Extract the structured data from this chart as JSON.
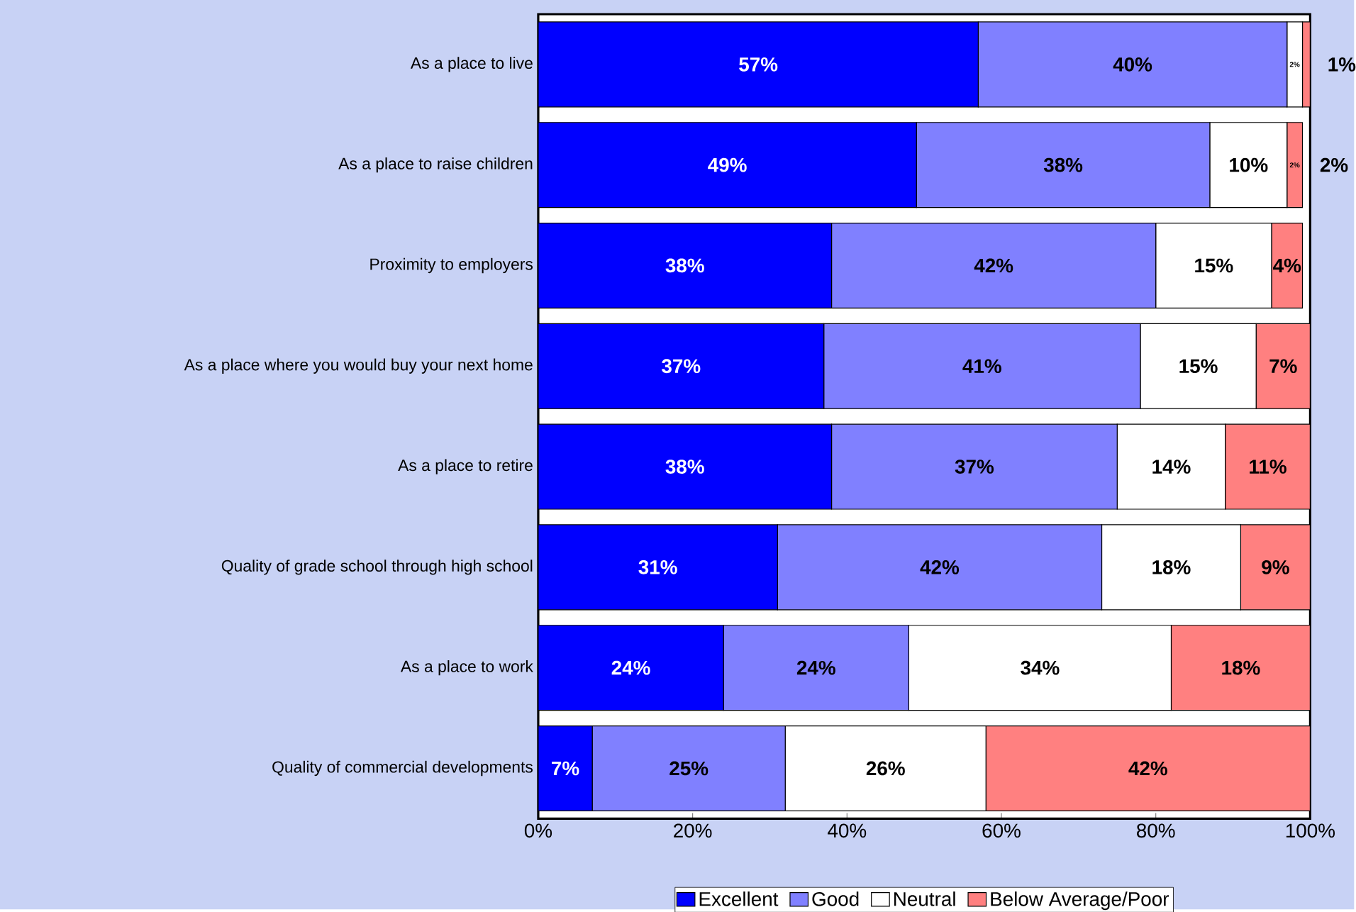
{
  "chart_data": {
    "type": "bar",
    "orientation": "horizontal",
    "stacked": true,
    "categories": [
      "As a place to live",
      "As a place to raise children",
      "Proximity to employers",
      "As a place where you would buy your next home",
      "As a place to retire",
      "Quality of grade school through high school",
      "As a place to work",
      "Quality of commercial developments"
    ],
    "series": [
      {
        "name": "Excellent",
        "color": "#0000ff",
        "values": [
          57,
          49,
          38,
          37,
          38,
          31,
          24,
          7
        ],
        "value_labels": [
          "57%",
          "49%",
          "38%",
          "37%",
          "38%",
          "31%",
          "24%",
          "7%"
        ]
      },
      {
        "name": "Good",
        "color": "#8080ff",
        "values": [
          40,
          38,
          42,
          41,
          37,
          42,
          24,
          25
        ],
        "value_labels": [
          "40%",
          "38%",
          "42%",
          "41%",
          "37%",
          "42%",
          "24%",
          "25%"
        ]
      },
      {
        "name": "Neutral",
        "color": "#ffffff",
        "values": [
          2,
          10,
          15,
          15,
          14,
          18,
          34,
          26
        ],
        "value_labels": [
          "2%",
          "10%",
          "15%",
          "15%",
          "14%",
          "18%",
          "34%",
          "26%"
        ]
      },
      {
        "name": "Below Average/Poor",
        "color": "#ff8080",
        "values": [
          1,
          2,
          4,
          7,
          11,
          9,
          18,
          42
        ],
        "value_labels": [
          null,
          "2%",
          "4%",
          "7%",
          "11%",
          "9%",
          "18%",
          "42%"
        ]
      }
    ],
    "xlim": [
      0,
      100
    ],
    "xticks": [
      {
        "value": 0,
        "label": "0%"
      },
      {
        "value": 20,
        "label": "20%"
      },
      {
        "value": 40,
        "label": "40%"
      },
      {
        "value": 60,
        "label": "60%"
      },
      {
        "value": 80,
        "label": "80%"
      },
      {
        "value": 100,
        "label": "100%"
      }
    ],
    "annotations": [
      {
        "text": "1%",
        "x": 100,
        "y": "As a place to live"
      },
      {
        "text": "2%",
        "x": 99,
        "y": "As a place to raise children"
      }
    ],
    "legend": "bottom",
    "grid": false
  }
}
